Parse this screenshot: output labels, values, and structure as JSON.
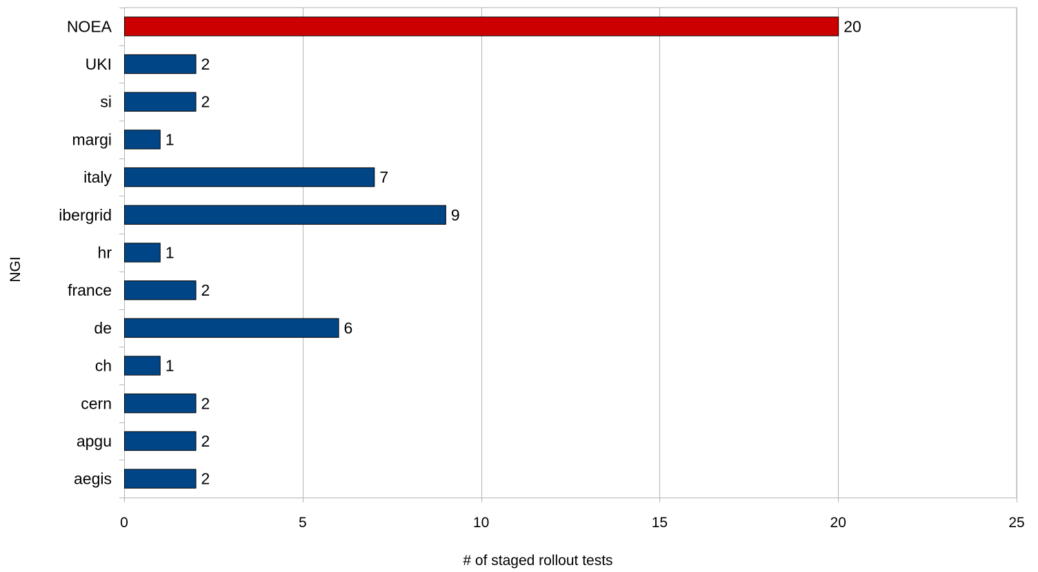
{
  "chart_data": {
    "type": "bar",
    "orientation": "horizontal",
    "categories": [
      "NOEA",
      "UKI",
      "si",
      "margi",
      "italy",
      "ibergrid",
      "hr",
      "france",
      "de",
      "ch",
      "cern",
      "apgu",
      "aegis"
    ],
    "values": [
      20,
      2,
      2,
      1,
      7,
      9,
      1,
      2,
      6,
      1,
      2,
      2,
      2
    ],
    "highlight": "NOEA",
    "xlabel": "# of staged rollout tests",
    "ylabel": "NGI",
    "xlim": [
      0,
      25
    ],
    "xticks": [
      0,
      5,
      10,
      15,
      20,
      25
    ],
    "grid": "vertical",
    "legend": "none",
    "colors": {
      "bar": "#004586",
      "highlight": "#cc0000",
      "grid": "#b3b3b3",
      "axis": "#b3b3b3"
    }
  }
}
